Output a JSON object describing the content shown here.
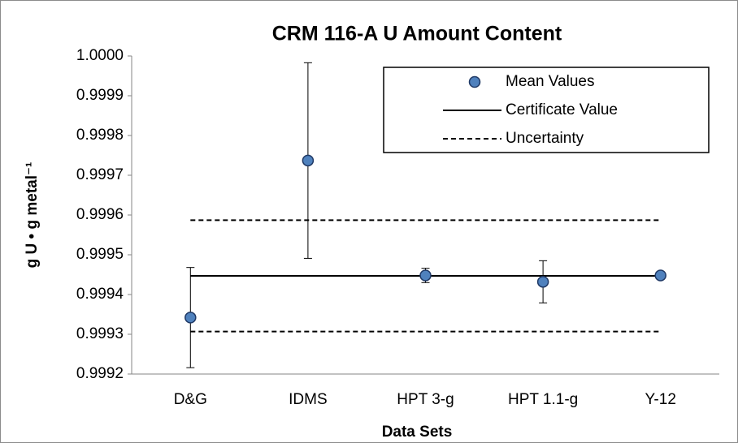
{
  "chart_data": {
    "type": "errorbar_scatter",
    "title": "CRM 116-A U Amount Content",
    "xlabel": "Data Sets",
    "ylabel": "g U • g metal⁻¹",
    "categories": [
      "D&G",
      "IDMS",
      "HPT 3-g",
      "HPT 1.1-g",
      "Y-12"
    ],
    "series": [
      {
        "name": "Mean Values",
        "color": "#4f81bd",
        "edge_color": "#1f3864",
        "values": [
          0.999342,
          0.999737,
          0.999448,
          0.999432,
          0.999448
        ],
        "errors": [
          0.000126,
          0.000246,
          1.8e-05,
          5.3e-05,
          4e-06
        ]
      },
      {
        "name": "Certificate Value",
        "color": "#000000",
        "dash": "solid",
        "value": 0.999447
      },
      {
        "name": "Uncertainty",
        "color": "#000000",
        "dash": "dashed",
        "values": [
          0.999307,
          0.999587
        ]
      }
    ],
    "ylim": [
      0.9992,
      1
    ],
    "yticks": [
      0.9992,
      0.9993,
      0.9994,
      0.9995,
      0.9996,
      0.9997,
      0.9998,
      0.9999,
      {
        "value": 1,
        "label": "1.0000"
      }
    ],
    "legend": "upper right",
    "grid": false
  }
}
